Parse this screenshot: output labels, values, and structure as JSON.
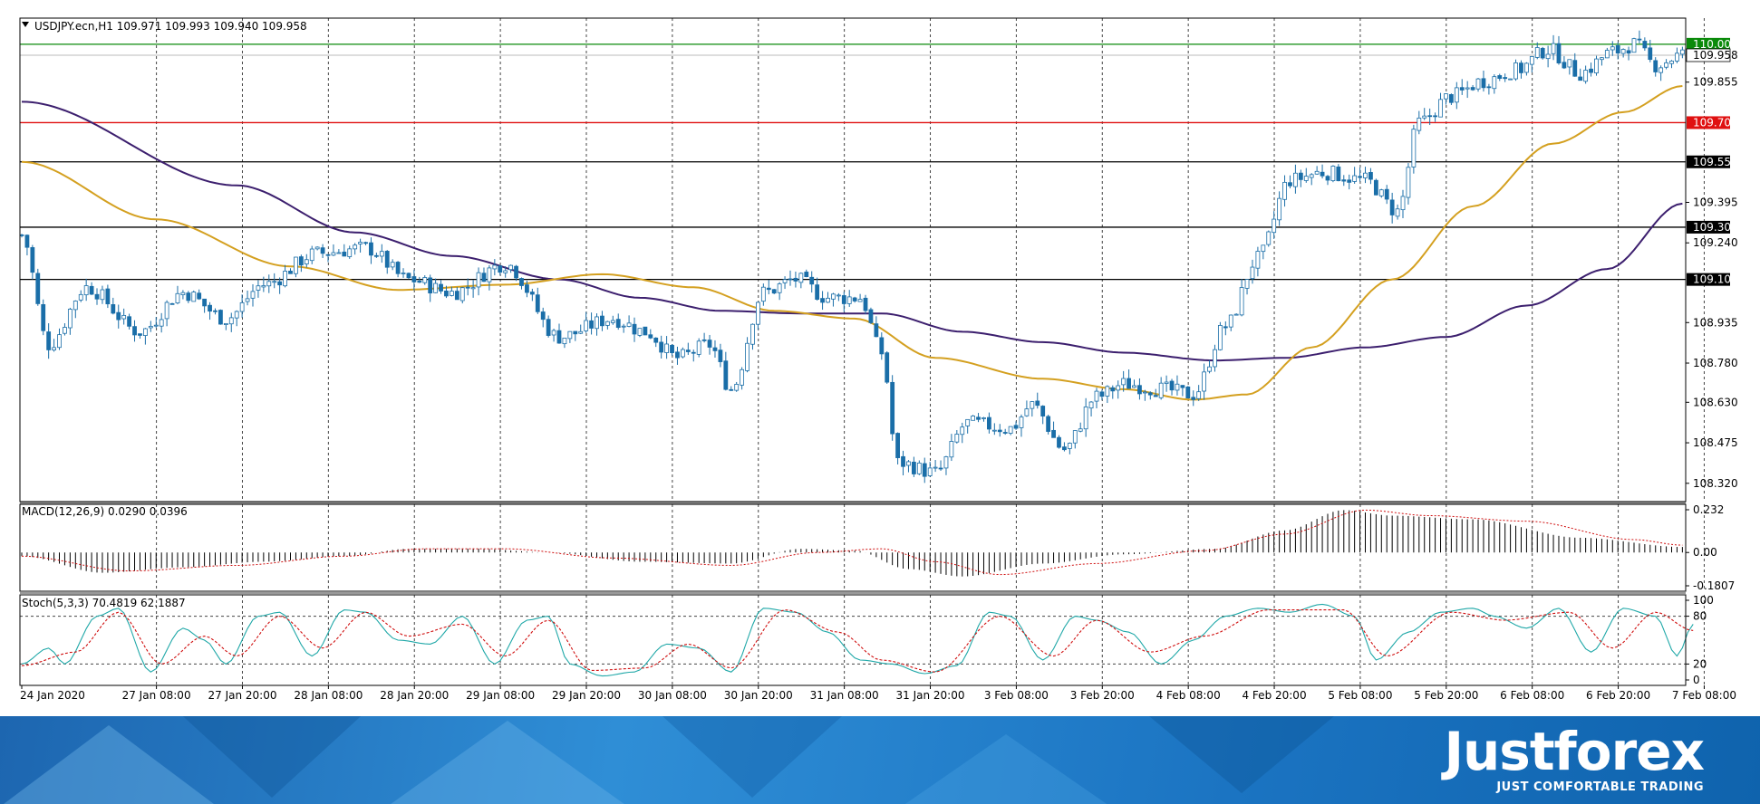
{
  "main_panel": {
    "symbol_info": "USDJPY.ecn,H1  109.971 109.993 109.940 109.958"
  },
  "macd_panel": {
    "title": "MACD(12,26,9) 0.0290 0.0396"
  },
  "stoch_panel": {
    "title": "Stoch(5,3,3) 70.4819 62.1887"
  },
  "brand": {
    "name": "Justforex",
    "slogan": "JUST COMFORTABLE TRADING"
  },
  "colors": {
    "bull": "#ffffff",
    "bear": "#1a6ea8",
    "wick": "#1a6ea8",
    "ma_slow": "#3c1f6e",
    "ma_fast": "#d4a020",
    "level_green": "#0a8a0a",
    "level_red": "#e01010",
    "macd_signal": "#d01010",
    "stoch_main": "#20a8a8",
    "stoch_signal": "#d01010"
  },
  "chart_data": [
    {
      "type": "candlestick",
      "symbol": "USDJPY.ecn",
      "timeframe": "H1",
      "ylim": [
        108.25,
        110.1
      ],
      "y_ticks": [
        "110.000",
        "109.958",
        "109.855",
        "109.700",
        "109.550",
        "109.395",
        "109.300",
        "109.240",
        "109.100",
        "108.935",
        "108.780",
        "108.630",
        "108.475",
        "108.320"
      ],
      "x_ticks": [
        "24 Jan 2020",
        "27 Jan 08:00",
        "27 Jan 20:00",
        "28 Jan 08:00",
        "28 Jan 20:00",
        "29 Jan 08:00",
        "29 Jan 20:00",
        "30 Jan 08:00",
        "30 Jan 20:00",
        "31 Jan 08:00",
        "31 Jan 20:00",
        "3 Feb 08:00",
        "3 Feb 20:00",
        "4 Feb 08:00",
        "4 Feb 20:00",
        "5 Feb 08:00",
        "5 Feb 20:00",
        "6 Feb 08:00",
        "6 Feb 20:00",
        "7 Feb 08:00"
      ],
      "horizontal_levels": [
        {
          "price": 110.0,
          "label": "110.000",
          "color": "green"
        },
        {
          "price": 109.7,
          "label": "109.700",
          "color": "red"
        },
        {
          "price": 109.55,
          "label": "109.550",
          "color": "black"
        },
        {
          "price": 109.3,
          "label": "109.300",
          "color": "black"
        },
        {
          "price": 109.1,
          "label": "109.100",
          "color": "black"
        }
      ],
      "current_price": {
        "price": 109.958,
        "label": "109.958"
      },
      "grid": true,
      "close_anchors": [
        [
          0,
          109.27
        ],
        [
          5,
          108.85
        ],
        [
          12,
          109.07
        ],
        [
          22,
          108.9
        ],
        [
          30,
          109.05
        ],
        [
          38,
          108.95
        ],
        [
          45,
          109.08
        ],
        [
          55,
          109.2
        ],
        [
          64,
          109.22
        ],
        [
          72,
          109.1
        ],
        [
          80,
          109.05
        ],
        [
          90,
          109.16
        ],
        [
          100,
          108.88
        ],
        [
          110,
          108.95
        ],
        [
          116,
          108.9
        ],
        [
          122,
          108.8
        ],
        [
          128,
          108.85
        ],
        [
          132,
          108.68
        ],
        [
          138,
          109.05
        ],
        [
          144,
          109.1
        ],
        [
          150,
          109.03
        ],
        [
          156,
          109.03
        ],
        [
          160,
          108.82
        ],
        [
          163,
          108.4
        ],
        [
          170,
          108.36
        ],
        [
          176,
          108.55
        ],
        [
          184,
          108.53
        ],
        [
          188,
          108.62
        ],
        [
          194,
          108.45
        ],
        [
          200,
          108.65
        ],
        [
          205,
          108.7
        ],
        [
          212,
          108.68
        ],
        [
          218,
          108.66
        ],
        [
          224,
          108.92
        ],
        [
          230,
          109.18
        ],
        [
          236,
          109.48
        ],
        [
          242,
          109.51
        ],
        [
          250,
          109.48
        ],
        [
          256,
          109.36
        ],
        [
          260,
          109.7
        ],
        [
          266,
          109.8
        ],
        [
          272,
          109.86
        ],
        [
          278,
          109.9
        ],
        [
          284,
          109.98
        ],
        [
          290,
          109.89
        ],
        [
          296,
          109.97
        ],
        [
          300,
          110.0
        ],
        [
          304,
          109.92
        ],
        [
          309,
          109.96
        ]
      ],
      "series": [
        {
          "name": "",
          "type": "line",
          "color": "ma_slow",
          "anchors": [
            [
              0,
              109.78
            ],
            [
              40,
              109.46
            ],
            [
              62,
              109.28
            ],
            [
              80,
              109.19
            ],
            [
              100,
              109.1
            ],
            [
              115,
              109.03
            ],
            [
              130,
              108.98
            ],
            [
              145,
              108.97
            ],
            [
              160,
              108.97
            ],
            [
              175,
              108.9
            ],
            [
              190,
              108.86
            ],
            [
              205,
              108.82
            ],
            [
              222,
              108.79
            ],
            [
              235,
              108.8
            ],
            [
              250,
              108.84
            ],
            [
              265,
              108.88
            ],
            [
              280,
              109.0
            ],
            [
              295,
              109.14
            ],
            [
              309,
              109.39
            ]
          ]
        },
        {
          "name": "",
          "type": "line",
          "color": "ma_fast",
          "anchors": [
            [
              0,
              109.55
            ],
            [
              25,
              109.33
            ],
            [
              50,
              109.15
            ],
            [
              70,
              109.06
            ],
            [
              90,
              109.08
            ],
            [
              108,
              109.12
            ],
            [
              125,
              109.07
            ],
            [
              140,
              108.98
            ],
            [
              155,
              108.95
            ],
            [
              170,
              108.8
            ],
            [
              190,
              108.72
            ],
            [
              205,
              108.68
            ],
            [
              218,
              108.64
            ],
            [
              228,
              108.66
            ],
            [
              240,
              108.84
            ],
            [
              255,
              109.1
            ],
            [
              270,
              109.38
            ],
            [
              285,
              109.62
            ],
            [
              298,
              109.74
            ],
            [
              309,
              109.84
            ]
          ]
        }
      ]
    },
    {
      "type": "bar",
      "name": "MACD(12,26,9)",
      "ylim": [
        -0.1807,
        0.232
      ],
      "y_ticks": [
        "0.232",
        "0.00",
        "-0.1807"
      ],
      "histogram_anchors": [
        [
          0,
          -0.02
        ],
        [
          15,
          -0.11
        ],
        [
          30,
          -0.08
        ],
        [
          45,
          -0.05
        ],
        [
          60,
          -0.02
        ],
        [
          72,
          0.02
        ],
        [
          85,
          0.02
        ],
        [
          98,
          0.0
        ],
        [
          115,
          -0.05
        ],
        [
          132,
          -0.06
        ],
        [
          145,
          0.02
        ],
        [
          155,
          0.01
        ],
        [
          165,
          -0.09
        ],
        [
          175,
          -0.13
        ],
        [
          190,
          -0.06
        ],
        [
          205,
          -0.01
        ],
        [
          222,
          0.02
        ],
        [
          235,
          0.12
        ],
        [
          246,
          0.23
        ],
        [
          255,
          0.2
        ],
        [
          270,
          0.18
        ],
        [
          290,
          0.08
        ],
        [
          309,
          0.03
        ]
      ],
      "signal_anchors": [
        [
          0,
          -0.02
        ],
        [
          20,
          -0.1
        ],
        [
          40,
          -0.07
        ],
        [
          60,
          -0.02
        ],
        [
          75,
          0.02
        ],
        [
          90,
          0.02
        ],
        [
          110,
          -0.03
        ],
        [
          132,
          -0.07
        ],
        [
          148,
          0.0
        ],
        [
          160,
          0.02
        ],
        [
          170,
          -0.05
        ],
        [
          182,
          -0.12
        ],
        [
          200,
          -0.06
        ],
        [
          220,
          0.01
        ],
        [
          235,
          0.1
        ],
        [
          250,
          0.23
        ],
        [
          262,
          0.2
        ],
        [
          280,
          0.17
        ],
        [
          300,
          0.07
        ],
        [
          309,
          0.04
        ]
      ]
    },
    {
      "type": "line",
      "name": "Stoch(5,3,3)",
      "ylim": [
        0,
        100
      ],
      "y_ticks": [
        "100",
        "80",
        "20",
        "0"
      ],
      "levels": [
        80,
        20
      ],
      "series": [
        {
          "name": "",
          "color": "stoch_main",
          "anchors": [
            [
              0,
              20
            ],
            [
              5,
              40
            ],
            [
              8,
              20
            ],
            [
              14,
              80
            ],
            [
              18,
              90
            ],
            [
              24,
              10
            ],
            [
              30,
              65
            ],
            [
              34,
              50
            ],
            [
              38,
              20
            ],
            [
              44,
              80
            ],
            [
              48,
              85
            ],
            [
              54,
              30
            ],
            [
              60,
              88
            ],
            [
              64,
              85
            ],
            [
              70,
              50
            ],
            [
              76,
              45
            ],
            [
              82,
              80
            ],
            [
              88,
              20
            ],
            [
              94,
              75
            ],
            [
              98,
              80
            ],
            [
              102,
              20
            ],
            [
              108,
              5
            ],
            [
              114,
              10
            ],
            [
              120,
              45
            ],
            [
              126,
              40
            ],
            [
              132,
              10
            ],
            [
              138,
              90
            ],
            [
              144,
              85
            ],
            [
              150,
              60
            ],
            [
              156,
              25
            ],
            [
              162,
              20
            ],
            [
              168,
              8
            ],
            [
              174,
              18
            ],
            [
              180,
              85
            ],
            [
              184,
              80
            ],
            [
              190,
              25
            ],
            [
              196,
              80
            ],
            [
              200,
              75
            ],
            [
              206,
              60
            ],
            [
              212,
              20
            ],
            [
              218,
              50
            ],
            [
              224,
              80
            ],
            [
              230,
              90
            ],
            [
              236,
              85
            ],
            [
              242,
              95
            ],
            [
              248,
              80
            ],
            [
              252,
              25
            ],
            [
              258,
              60
            ],
            [
              264,
              85
            ],
            [
              270,
              90
            ],
            [
              274,
              80
            ],
            [
              280,
              65
            ],
            [
              286,
              90
            ],
            [
              292,
              35
            ],
            [
              298,
              90
            ],
            [
              304,
              80
            ],
            [
              308,
              30
            ],
            [
              311,
              70
            ]
          ]
        },
        {
          "name": "",
          "color": "stoch_signal",
          "anchors": [
            [
              0,
              18
            ],
            [
              10,
              35
            ],
            [
              18,
              85
            ],
            [
              26,
              20
            ],
            [
              34,
              55
            ],
            [
              40,
              30
            ],
            [
              48,
              80
            ],
            [
              56,
              40
            ],
            [
              64,
              85
            ],
            [
              72,
              55
            ],
            [
              82,
              70
            ],
            [
              90,
              30
            ],
            [
              98,
              75
            ],
            [
              106,
              12
            ],
            [
              116,
              15
            ],
            [
              124,
              45
            ],
            [
              132,
              15
            ],
            [
              142,
              88
            ],
            [
              152,
              60
            ],
            [
              160,
              25
            ],
            [
              170,
              10
            ],
            [
              182,
              80
            ],
            [
              192,
              30
            ],
            [
              200,
              75
            ],
            [
              210,
              35
            ],
            [
              220,
              55
            ],
            [
              232,
              88
            ],
            [
              246,
              88
            ],
            [
              254,
              30
            ],
            [
              266,
              85
            ],
            [
              276,
              75
            ],
            [
              288,
              85
            ],
            [
              296,
              40
            ],
            [
              304,
              85
            ],
            [
              311,
              62
            ]
          ]
        }
      ]
    }
  ]
}
